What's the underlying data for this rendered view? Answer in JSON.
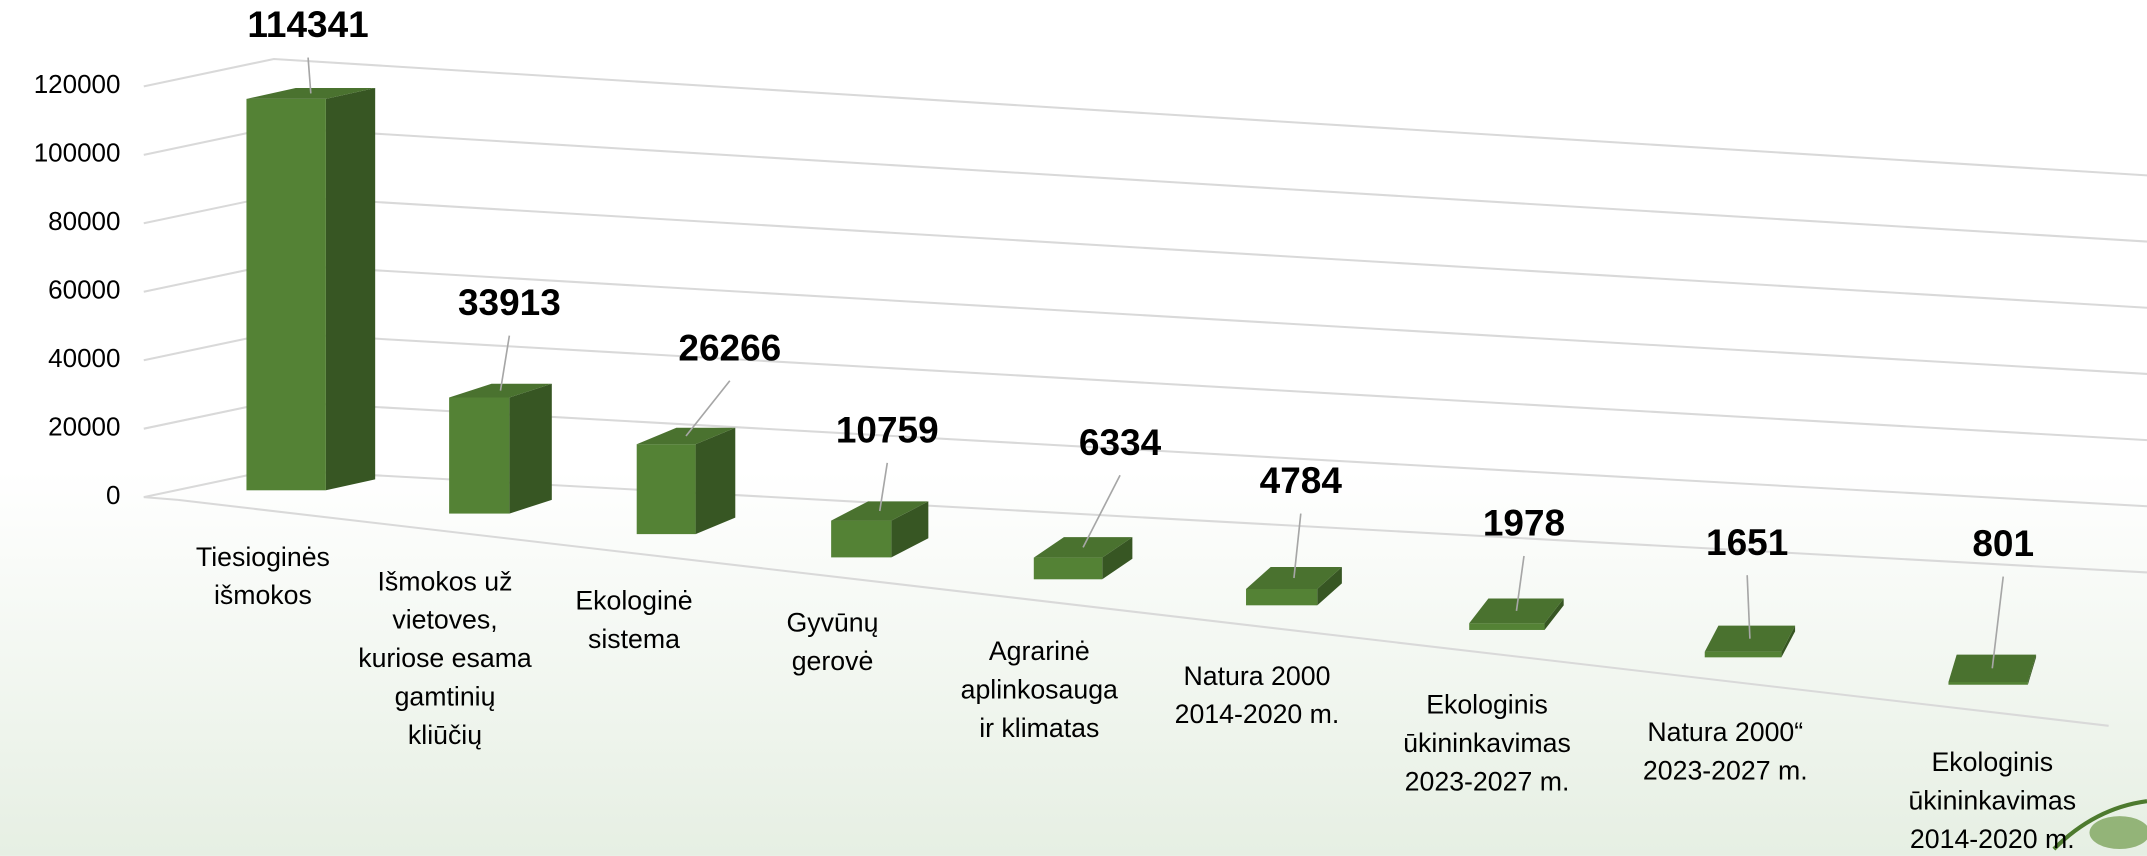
{
  "chart_data": {
    "type": "bar3d",
    "categories": [
      "Tiesioginės\nišmokos",
      "Išmokos už\nvietoves,\nkuriose esama\ngamtinių\nkliūčių",
      "Ekologinė\nsistema",
      "Gyvūnų\ngerovė",
      "Agrarinė\naplinkosauga\nir klimatas",
      "Natura 2000\n2014-2020 m.",
      "Ekologinis\nūkininkavimas\n2023-2027 m.",
      "Natura 2000“\n2023-2027 m.",
      "Ekologinis\nūkininkavimas\n2014-2020 m."
    ],
    "values": [
      114341,
      33913,
      26266,
      10759,
      6334,
      4784,
      1978,
      1651,
      801
    ],
    "color": "#548235",
    "ylim": [
      0,
      120000
    ],
    "yticks": [
      0,
      20000,
      40000,
      60000,
      80000,
      100000,
      120000
    ],
    "grid": true
  }
}
